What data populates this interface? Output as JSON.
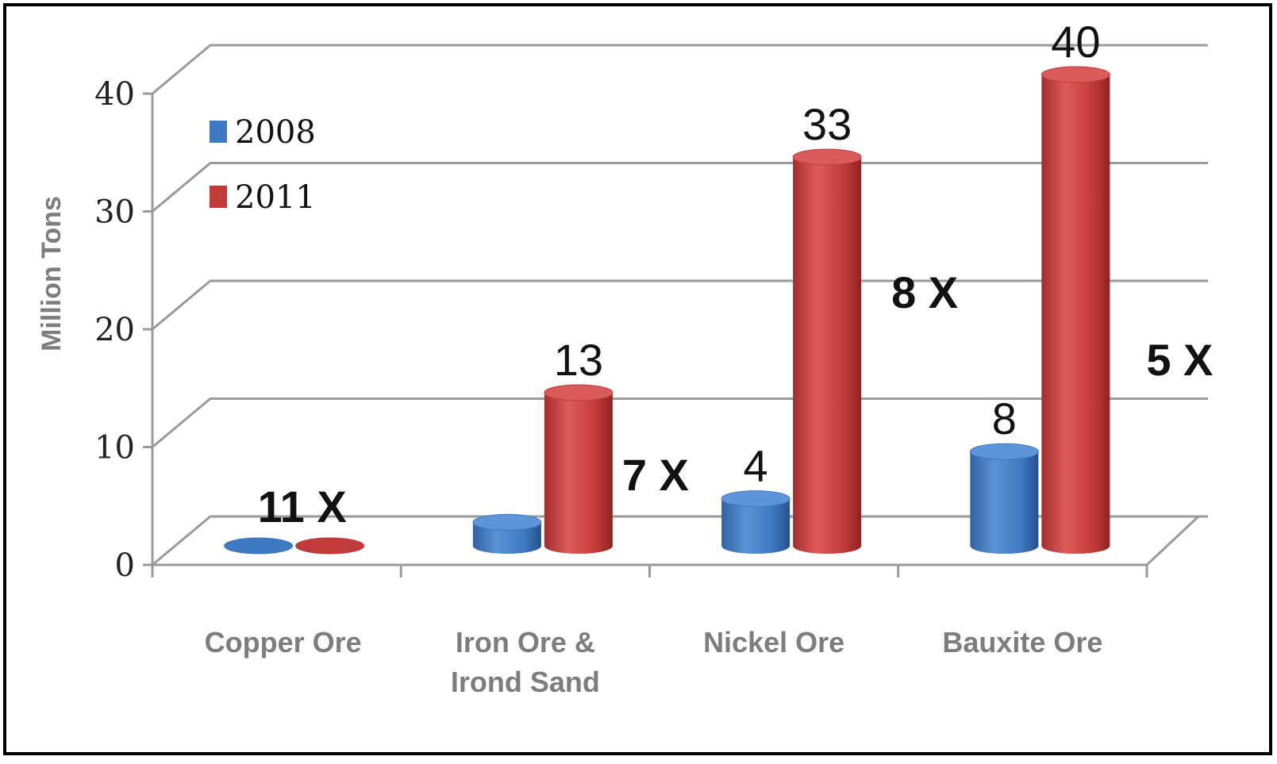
{
  "colors": {
    "series_2008": "#3f79c2",
    "series_2011": "#c23b3b",
    "grid": "#9a9a9a",
    "frame": "#000000"
  },
  "chart_data": {
    "type": "bar",
    "title": "",
    "xlabel": "",
    "ylabel": "Million Tons",
    "ylim": [
      0,
      40
    ],
    "yticks": [
      "0",
      "10",
      "20",
      "30",
      "40"
    ],
    "categories": [
      "Copper Ore",
      "Iron Ore & Irond Sand",
      "Nickel Ore",
      "Bauxite Ore"
    ],
    "category_lines": [
      [
        "Copper Ore"
      ],
      [
        "Iron Ore &",
        "Irond Sand"
      ],
      [
        "Nickel Ore"
      ],
      [
        "Bauxite Ore"
      ]
    ],
    "series": [
      {
        "name": "2008",
        "values": [
          0,
          2,
          4,
          8
        ],
        "value_labels": [
          "",
          "",
          "4",
          "8"
        ]
      },
      {
        "name": "2011",
        "values": [
          0,
          13,
          33,
          40
        ],
        "value_labels": [
          "",
          "13",
          "33",
          "40"
        ]
      }
    ],
    "ratio_labels": [
      "11 X",
      "7 X",
      "8 X",
      "5 X"
    ],
    "legend_position": "top-left",
    "grid": true,
    "style": "3d-cylinder"
  }
}
